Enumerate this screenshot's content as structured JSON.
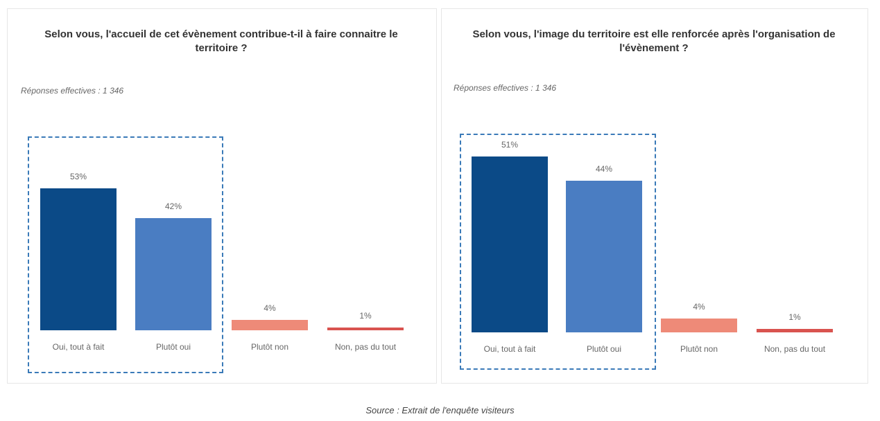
{
  "chart_data": [
    {
      "type": "bar",
      "title": "Selon vous, l'accueil de cet évènement contribue-t-il à faire connaitre le territoire ?",
      "subtitle": "Réponses effectives : 1 346",
      "categories": [
        "Oui, tout à fait",
        "Plutôt oui",
        "Plutôt non",
        "Non, pas du tout"
      ],
      "values": [
        53,
        42,
        4,
        1
      ],
      "value_labels": [
        "53%",
        "42%",
        "4%",
        "1%"
      ],
      "colors": [
        "#0b4a87",
        "#4a7dc2",
        "#ee8a78",
        "#d9534f"
      ]
    },
    {
      "type": "bar",
      "title": "Selon vous, l'image du territoire est elle renforcée après l'organisation de l'évènement ?",
      "subtitle": "Réponses effectives : 1 346",
      "categories": [
        "Oui, tout à fait",
        "Plutôt oui",
        "Plutôt non",
        "Non, pas du tout"
      ],
      "values": [
        51,
        44,
        4,
        1
      ],
      "value_labels": [
        "51%",
        "44%",
        "4%",
        "1%"
      ],
      "colors": [
        "#0b4a87",
        "#4a7dc2",
        "#ee8a78",
        "#d9534f"
      ]
    }
  ],
  "source": "Source : Extrait de l'enquête visiteurs"
}
